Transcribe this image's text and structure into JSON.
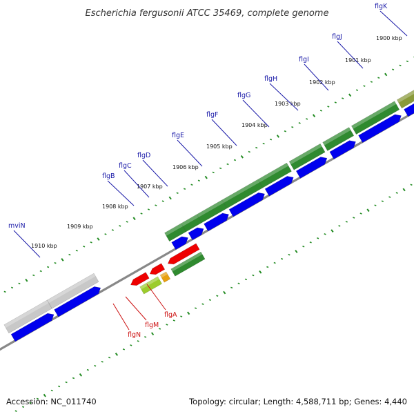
{
  "title": "Escherichia fergusonii ATCC 35469, complete genome",
  "accession": "Accession: NC_011740",
  "topology": "Topology: circular; Length: 4,588,711 bp; Genes: 4,440",
  "colors": {
    "cds_blue": "#0000ee",
    "gene_green": "#2f8a2f",
    "gene_gray": "#c8c8c8",
    "red": "#ee0000",
    "label_blue": "#1a1aa8",
    "label_red": "#cc1111",
    "backbone": "#888888",
    "tick_green": "#228b22"
  },
  "kbp_ticks": [
    {
      "label": "1900 kbp"
    },
    {
      "label": "1901 kbp"
    },
    {
      "label": "1902 kbp"
    },
    {
      "label": "1903 kbp"
    },
    {
      "label": "1904 kbp"
    },
    {
      "label": "1905 kbp"
    },
    {
      "label": "1906 kbp"
    },
    {
      "label": "1907 kbp"
    },
    {
      "label": "1908 kbp"
    },
    {
      "label": "1909 kbp"
    },
    {
      "label": "1910 kbp"
    }
  ],
  "forward_genes": [
    {
      "name": "mviN"
    },
    {
      "name": "flgB"
    },
    {
      "name": "flgC"
    },
    {
      "name": "flgD"
    },
    {
      "name": "flgE"
    },
    {
      "name": "flgF"
    },
    {
      "name": "flgG"
    },
    {
      "name": "flgH"
    },
    {
      "name": "flgI"
    },
    {
      "name": "flgJ"
    },
    {
      "name": "flgK"
    }
  ],
  "reverse_genes": [
    {
      "name": "flgN"
    },
    {
      "name": "flgM"
    },
    {
      "name": "flgA"
    }
  ]
}
